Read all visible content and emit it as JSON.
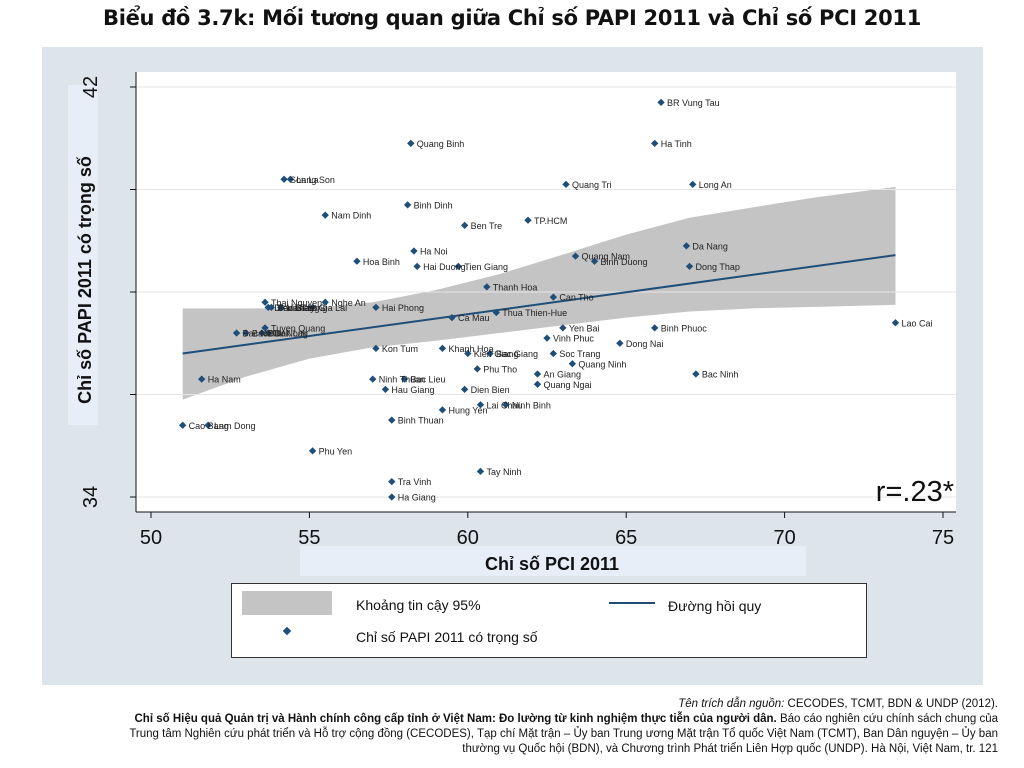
{
  "title": "Biểu đồ 3.7k: Mối tương quan giữa Chỉ số PAPI 2011 và Chỉ số PCI 2011",
  "annotation": "r=.23*",
  "legend": {
    "ci_label": "Khoảng tin cậy 95%",
    "line_label": "Đường hồi quy",
    "point_label": "Chỉ số PAPI 2011 có trọng số"
  },
  "source": {
    "line1_italic": "Tên trích dẫn nguồn:",
    "line1_rest": " CECODES, TCMT, BDN & UNDP (2012).",
    "line2_bold": "Chỉ số Hiệu quả Quản trị và Hành chính công cấp tỉnh ở Việt Nam: Đo lường từ kinh nghiệm thực tiễn của người dân.",
    "line2_rest": " Báo cáo nghiên cứu chính sách chung của",
    "line3": "Trung tâm Nghiên cứu phát triển và Hỗ trợ cộng đồng (CECODES), Tạp chí Mặt trận – Ủy ban Trung ương Mặt trận Tổ quốc Việt Nam (TCMT), Ban Dân nguyện – Ủy ban",
    "line4": "thường vụ Quốc hội (BDN), và Chương trình Phát triển Liên Hợp quốc (UNDP). Hà Nội, Việt Nam, tr. 121"
  },
  "colors": {
    "point": "#1f4e79",
    "line": "#1f4e79",
    "ci": "#c4c4c4"
  },
  "chart_data": {
    "type": "scatter",
    "xlabel": "Chỉ số PCI 2011",
    "ylabel": "Chỉ số PAPI 2011 có trọng số",
    "xlim": [
      50,
      75
    ],
    "ylim": [
      34,
      42
    ],
    "xticks": [
      "50",
      "55",
      "60",
      "65",
      "70",
      "75"
    ],
    "yticks": [
      "34",
      "42"
    ],
    "grid": "y",
    "regression": {
      "x": [
        51,
        73.5
      ],
      "y": [
        36.8,
        38.72
      ]
    },
    "ci_band": {
      "x": [
        51,
        53,
        55,
        57,
        59,
        61,
        63,
        65,
        67,
        69,
        71,
        73.5
      ],
      "upper": [
        37.68,
        37.68,
        37.68,
        37.8,
        38.04,
        38.35,
        38.73,
        39.12,
        39.45,
        39.65,
        39.85,
        40.05
      ],
      "lower": [
        35.9,
        36.35,
        36.7,
        36.92,
        37.05,
        37.2,
        37.35,
        37.5,
        37.62,
        37.68,
        37.71,
        37.75
      ]
    },
    "points": [
      {
        "name": "BR Vung Tau",
        "x": 66.1,
        "y": 41.7
      },
      {
        "name": "Quang Binh",
        "x": 58.2,
        "y": 40.9
      },
      {
        "name": "Ha Tinh",
        "x": 65.9,
        "y": 40.9
      },
      {
        "name": "Cao Bang",
        "x": 51.0,
        "y": 35.4
      },
      {
        "name": "Quang Tri",
        "x": 63.1,
        "y": 40.1
      },
      {
        "name": "Long An",
        "x": 67.1,
        "y": 40.1
      },
      {
        "name": "Son La",
        "x": 54.2,
        "y": 40.2
      },
      {
        "name": "Lang Son",
        "x": 54.4,
        "y": 40.2
      },
      {
        "name": "Binh Dinh",
        "x": 58.1,
        "y": 39.7
      },
      {
        "name": "Nam Dinh",
        "x": 55.5,
        "y": 39.5
      },
      {
        "name": "Ben Tre",
        "x": 59.9,
        "y": 39.3
      },
      {
        "name": "TP.HCM",
        "x": 61.9,
        "y": 39.4
      },
      {
        "name": "Da Nang",
        "x": 66.9,
        "y": 38.9
      },
      {
        "name": "Ha Noi",
        "x": 58.3,
        "y": 38.8
      },
      {
        "name": "Quang Nam",
        "x": 63.4,
        "y": 38.7
      },
      {
        "name": "Binh Duong",
        "x": 64.0,
        "y": 38.6
      },
      {
        "name": "Hoa Binh",
        "x": 56.5,
        "y": 38.6
      },
      {
        "name": "Hai Duong",
        "x": 58.4,
        "y": 38.5
      },
      {
        "name": "Tien Giang",
        "x": 59.7,
        "y": 38.5
      },
      {
        "name": "Dong Thap",
        "x": 67.0,
        "y": 38.5
      },
      {
        "name": "Thanh Hoa",
        "x": 60.6,
        "y": 38.1
      },
      {
        "name": "Can Tho",
        "x": 62.7,
        "y": 37.9
      },
      {
        "name": "Thai Nguyen",
        "x": 53.6,
        "y": 37.8
      },
      {
        "name": "Nghe An",
        "x": 55.5,
        "y": 37.8
      },
      {
        "name": "Dien Bien",
        "x": 53.7,
        "y": 37.7
      },
      {
        "name": "Vinh Long",
        "x": 54.1,
        "y": 37.7
      },
      {
        "name": "Bac Giang",
        "x": 53.8,
        "y": 37.7
      },
      {
        "name": "Ha Tay",
        "x": 54.1,
        "y": 37.7
      },
      {
        "name": "Gia Lai",
        "x": 55.1,
        "y": 37.7
      },
      {
        "name": "Hai Phong",
        "x": 57.1,
        "y": 37.7
      },
      {
        "name": "Ca Mau",
        "x": 59.5,
        "y": 37.5
      },
      {
        "name": "Thua Thien-Hue",
        "x": 60.9,
        "y": 37.6
      },
      {
        "name": "Yen Bai",
        "x": 63.0,
        "y": 37.3
      },
      {
        "name": "Lao Cai",
        "x": 73.5,
        "y": 37.4
      },
      {
        "name": "Binh Phuoc",
        "x": 65.9,
        "y": 37.3
      },
      {
        "name": "Tuyen Quang",
        "x": 53.6,
        "y": 37.3
      },
      {
        "name": "Bac Ninh",
        "x": 52.7,
        "y": 37.2
      },
      {
        "name": "Bac Kan",
        "x": 53.0,
        "y": 37.2
      },
      {
        "name": "Dak Nong",
        "x": 53.5,
        "y": 37.2
      },
      {
        "name": "Dak Lak",
        "x": 53.7,
        "y": 37.2
      },
      {
        "name": "Vinh Phuc",
        "x": 62.5,
        "y": 37.1
      },
      {
        "name": "Dong Nai",
        "x": 64.8,
        "y": 37.0
      },
      {
        "name": "Kon Tum",
        "x": 57.1,
        "y": 36.9
      },
      {
        "name": "Khanh Hoa",
        "x": 59.2,
        "y": 36.9
      },
      {
        "name": "Kien Giang",
        "x": 60.0,
        "y": 36.8
      },
      {
        "name": "Bac Giang",
        "x": 60.7,
        "y": 36.8
      },
      {
        "name": "Soc Trang",
        "x": 62.7,
        "y": 36.8
      },
      {
        "name": "Quang Ninh",
        "x": 63.3,
        "y": 36.6
      },
      {
        "name": "Phu Tho",
        "x": 60.3,
        "y": 36.5
      },
      {
        "name": "An Giang",
        "x": 62.2,
        "y": 36.4
      },
      {
        "name": "Bac Ninh",
        "x": 67.2,
        "y": 36.4
      },
      {
        "name": "Ninh Thuan",
        "x": 57.0,
        "y": 36.3
      },
      {
        "name": "Bac Lieu",
        "x": 58.0,
        "y": 36.3
      },
      {
        "name": "Ha Nam",
        "x": 51.6,
        "y": 36.3
      },
      {
        "name": "Quang Ngai",
        "x": 62.2,
        "y": 36.2
      },
      {
        "name": "Hau Giang",
        "x": 57.4,
        "y": 36.1
      },
      {
        "name": "Dien Bien",
        "x": 59.9,
        "y": 36.1
      },
      {
        "name": "Lai Chau",
        "x": 60.4,
        "y": 35.8
      },
      {
        "name": "Ninh Binh",
        "x": 61.2,
        "y": 35.8
      },
      {
        "name": "Hung Yen",
        "x": 59.2,
        "y": 35.7
      },
      {
        "name": "Binh Thuan",
        "x": 57.6,
        "y": 35.5
      },
      {
        "name": "Lam Dong",
        "x": 51.8,
        "y": 35.4
      },
      {
        "name": "Phu Yen",
        "x": 55.1,
        "y": 34.9
      },
      {
        "name": "Tay Ninh",
        "x": 60.4,
        "y": 34.5
      },
      {
        "name": "Tra Vinh",
        "x": 57.6,
        "y": 34.3
      },
      {
        "name": "Ha Giang",
        "x": 57.6,
        "y": 34.0
      }
    ]
  }
}
